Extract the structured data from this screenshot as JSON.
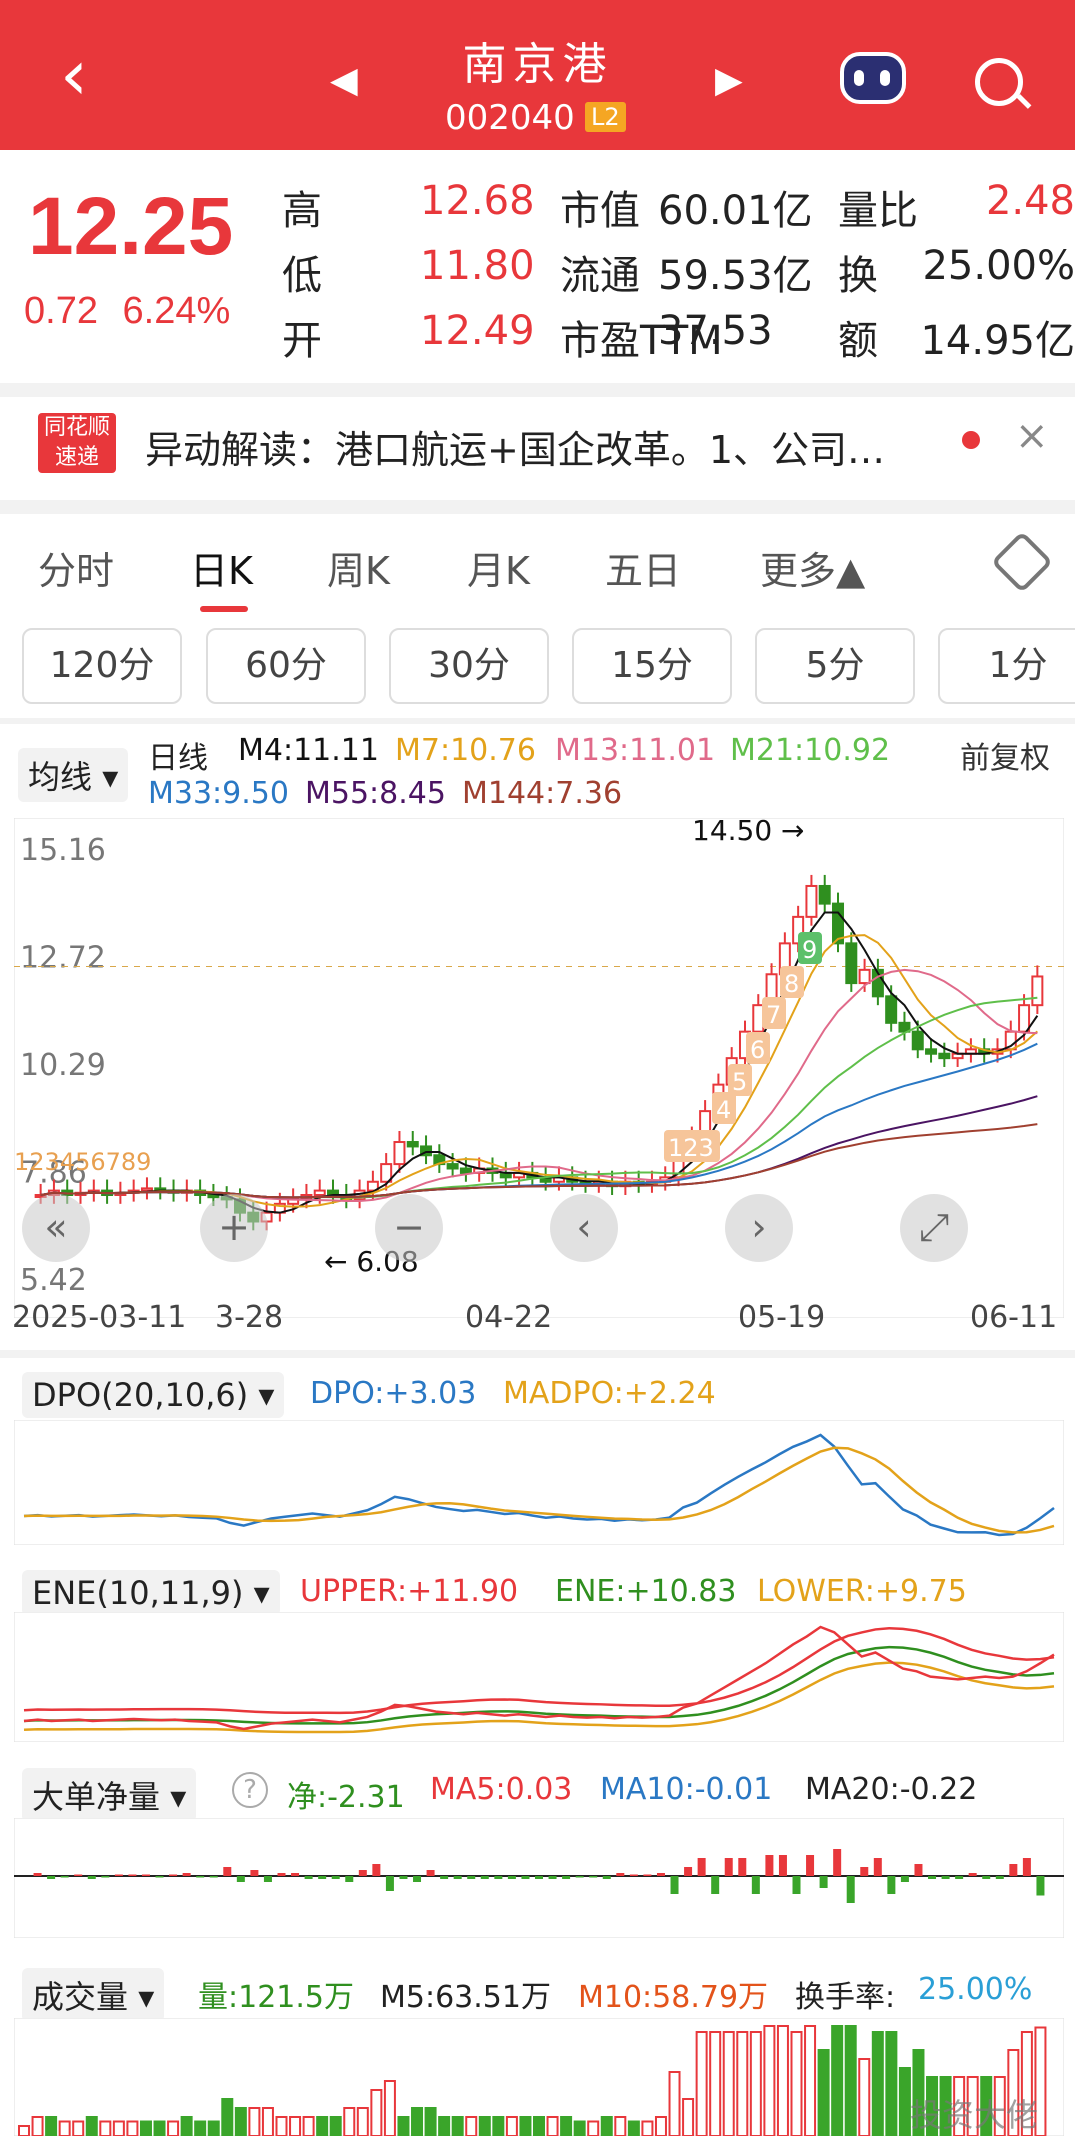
{
  "header": {
    "title": "南京港",
    "code": "002040",
    "level": "L2"
  },
  "quote": {
    "price": "12.25",
    "change": "0.72",
    "change_pct": "6.24%",
    "rows": [
      {
        "l1": "高",
        "v1": "12.68",
        "l2": "市值",
        "v2": "60.01亿",
        "l3": "量比",
        "v3": "2.48"
      },
      {
        "l1": "低",
        "v1": "11.80",
        "l2": "流通",
        "v2": "59.53亿",
        "l3": "换",
        "v3": "25.00%"
      },
      {
        "l1": "开",
        "v1": "12.49",
        "l2": "市盈TTM",
        "v2": "37.53",
        "l3": "额",
        "v3": "14.95亿"
      }
    ]
  },
  "announcement": {
    "logo_top": "同花顺",
    "logo_bottom": "速递",
    "text": "异动解读：港口航运+国企改革。1、公司…"
  },
  "tabs": [
    "分时",
    "日K",
    "周K",
    "月K",
    "五日",
    "更多▲"
  ],
  "intervals": [
    "120分",
    "60分",
    "30分",
    "15分",
    "5分",
    "1分"
  ],
  "ma_legend": {
    "selector": "均线",
    "period": "日线",
    "m4": "M4:11.11",
    "m7": "M7:10.76",
    "m13": "M13:11.01",
    "m21": "M21:10.92",
    "m33": "M33:9.50",
    "m55": "M55:8.45",
    "m144": "M144:7.36",
    "adjust": "前复权"
  },
  "colors": {
    "red": "#e8373b",
    "green": "#2f8f1f",
    "orange": "#e3a21a",
    "pink": "#e06a8a",
    "lightgreen": "#5fbf4a",
    "blue": "#2a78c4",
    "purple": "#4b1463",
    "brown": "#a04030"
  },
  "chart_data": {
    "type": "candlestick",
    "y_ticks": [
      "15.16",
      "12.72",
      "10.29",
      "7.86",
      "5.42"
    ],
    "high_label": "14.50",
    "low_label": "6.08",
    "dates": [
      "2025-03-11",
      "3-28",
      "04-22",
      "05-19",
      "06-11"
    ],
    "nine_turn_left": "123456789",
    "nine_turn_right": [
      "123",
      "4",
      "5",
      "6",
      "7",
      "8",
      "9"
    ],
    "closes": [
      7.3,
      7.4,
      7.3,
      7.35,
      7.4,
      7.3,
      7.35,
      7.4,
      7.45,
      7.4,
      7.35,
      7.4,
      7.3,
      7.25,
      7.2,
      6.9,
      6.7,
      6.9,
      7.1,
      7.2,
      7.3,
      7.4,
      7.3,
      7.2,
      7.4,
      7.6,
      8.0,
      8.5,
      8.4,
      8.2,
      8.0,
      7.9,
      7.8,
      7.9,
      7.8,
      7.7,
      7.8,
      7.7,
      7.6,
      7.7,
      7.6,
      7.55,
      7.6,
      7.5,
      7.6,
      7.55,
      7.6,
      7.7,
      8.3,
      8.6,
      9.2,
      9.8,
      10.4,
      11.0,
      11.6,
      12.3,
      13.0,
      13.6,
      14.3,
      13.9,
      13.0,
      12.1,
      12.4,
      11.8,
      11.2,
      11.0,
      10.6,
      10.5,
      10.4,
      10.5,
      10.6,
      10.5,
      10.6,
      11.0,
      11.6,
      12.25
    ]
  },
  "dpo": {
    "selector": "DPO(20,10,6)",
    "dpo": "DPO:+3.03",
    "madpo": "MADPO:+2.24"
  },
  "ene": {
    "selector": "ENE(10,11,9)",
    "upper": "UPPER:+11.90",
    "ene": "ENE:+10.83",
    "lower": "LOWER:+9.75"
  },
  "bigorder": {
    "selector": "大单净量",
    "net": "净:-2.31",
    "ma5": "MA5:0.03",
    "ma10": "MA10:-0.01",
    "ma20": "MA20:-0.22"
  },
  "volume": {
    "selector": "成交量",
    "vol": "量:121.5万",
    "m5": "M5:63.51万",
    "m10": "M10:58.79万",
    "turnover_label": "换手率:",
    "turnover": "25.00%"
  },
  "watermark": "投资大佬"
}
